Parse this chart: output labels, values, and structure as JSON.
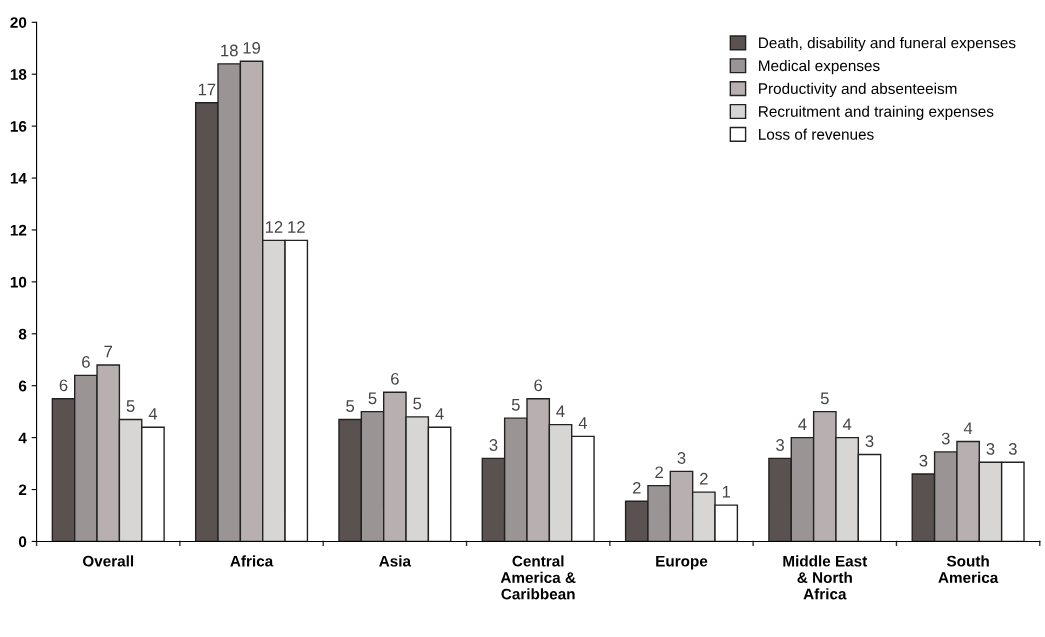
{
  "chart_data": {
    "type": "bar",
    "categories": [
      "Overall",
      "Africa",
      "Asia",
      "Central\nAmerica &\nCaribbean",
      "Europe",
      "Middle East\n& North\nAfrica",
      "South\nAmerica"
    ],
    "series": [
      {
        "name": "Death, disability and funeral expenses",
        "color": "#5a5250",
        "values": [
          5.5,
          16.9,
          4.7,
          3.2,
          1.55,
          3.2,
          2.6
        ],
        "value_labels": [
          "6",
          "17",
          "5",
          "3",
          "2",
          "3",
          "3"
        ]
      },
      {
        "name": "Medical expenses",
        "color": "#9a9494",
        "values": [
          6.4,
          18.4,
          5.0,
          4.75,
          2.15,
          4.0,
          3.45
        ],
        "value_labels": [
          "6",
          "18",
          "5",
          "5",
          "2",
          "4",
          "3"
        ]
      },
      {
        "name": "Productivity and absenteeism",
        "color": "#b8b0b0",
        "values": [
          6.8,
          18.5,
          5.75,
          5.5,
          2.7,
          5.0,
          3.85
        ],
        "value_labels": [
          "7",
          "19",
          "6",
          "6",
          "3",
          "5",
          "4"
        ]
      },
      {
        "name": "Recruitment and training expenses",
        "color": "#d8d6d4",
        "values": [
          4.7,
          11.6,
          4.8,
          4.5,
          1.9,
          4.0,
          3.05
        ],
        "value_labels": [
          "5",
          "12",
          "5",
          "4",
          "2",
          "4",
          "3"
        ]
      },
      {
        "name": "Loss of revenues",
        "color": "#ffffff",
        "values": [
          4.4,
          11.6,
          4.4,
          4.05,
          1.4,
          3.35,
          3.05
        ],
        "value_labels": [
          "4",
          "12",
          "4",
          "4",
          "1",
          "3",
          "3"
        ]
      }
    ],
    "ylim": [
      0,
      20
    ],
    "yticks": [
      0,
      2,
      4,
      6,
      8,
      10,
      12,
      14,
      16,
      18,
      20
    ],
    "grid": false,
    "legend": "top right"
  }
}
